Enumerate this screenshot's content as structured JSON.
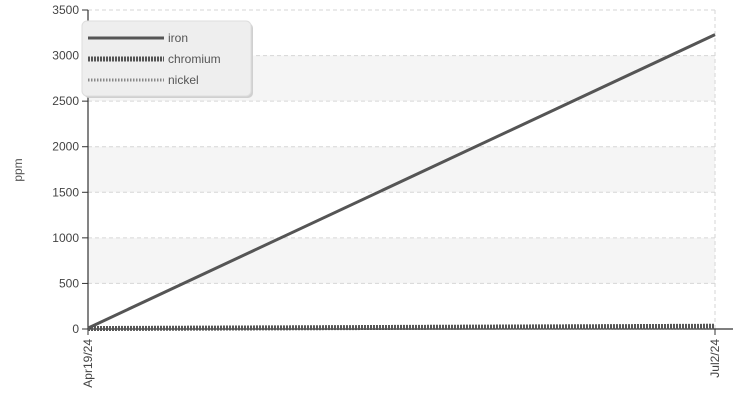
{
  "chart_data": {
    "type": "line",
    "title": "",
    "xlabel": "",
    "ylabel": "ppm",
    "x": [
      "Apr19/24",
      "Jul2/24"
    ],
    "x_tick_labels": [
      "Apr19/24",
      "Jul2/24"
    ],
    "y_ticks": [
      0,
      500,
      1000,
      1500,
      2000,
      2500,
      3000,
      3500
    ],
    "ylim": [
      0,
      3500
    ],
    "grid": "on",
    "legend_position": "top-left",
    "series": [
      {
        "name": "iron",
        "values": [
          10,
          3230
        ],
        "color": "#555555",
        "style": "solid"
      },
      {
        "name": "chromium",
        "values": [
          5,
          30
        ],
        "color": "#555555",
        "style": "dense-dotted"
      },
      {
        "name": "nickel",
        "values": [
          3,
          15
        ],
        "color": "#888888",
        "style": "dotted"
      }
    ]
  }
}
